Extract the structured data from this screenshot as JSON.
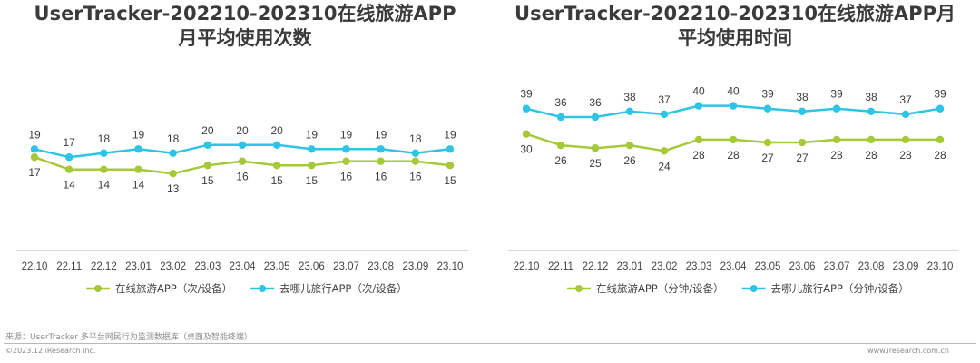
{
  "chart_data": [
    {
      "type": "line",
      "title": "UserTracker-202210-202310在线旅游APP月平均使用次数",
      "title_lines": [
        "UserTracker-202210-202310在线旅游APP",
        "月平均使用次数"
      ],
      "categories": [
        "22.10",
        "22.11",
        "22.12",
        "23.01",
        "23.02",
        "23.03",
        "23.04",
        "23.05",
        "23.06",
        "23.07",
        "23.08",
        "23.09",
        "23.10"
      ],
      "series": [
        {
          "name": "在线旅游APP（次/设备）",
          "color": "#a6c93a",
          "values": [
            17,
            14,
            14,
            14,
            13,
            15,
            16,
            15,
            15,
            16,
            16,
            16,
            15
          ]
        },
        {
          "name": "去哪儿旅行APP（次/设备）",
          "color": "#2ec4e6",
          "values": [
            19,
            17,
            18,
            19,
            18,
            20,
            20,
            20,
            19,
            19,
            19,
            18,
            19
          ]
        }
      ],
      "ylim": [
        -5,
        40
      ],
      "grid": false,
      "legend_position": "bottom"
    },
    {
      "type": "line",
      "title": "UserTracker-202210-202310在线旅游APP月平均使用时间",
      "title_lines": [
        "UserTracker-202210-202310在线旅游APP月",
        "平均使用时间"
      ],
      "categories": [
        "22.10",
        "22.11",
        "22.12",
        "23.01",
        "23.02",
        "23.03",
        "23.04",
        "23.05",
        "23.06",
        "23.07",
        "23.08",
        "23.09",
        "23.10"
      ],
      "series": [
        {
          "name": "在线旅游APP（分钟/设备）",
          "color": "#a6c93a",
          "values": [
            30,
            26,
            25,
            26,
            24,
            28,
            28,
            27,
            27,
            28,
            28,
            28,
            28
          ]
        },
        {
          "name": "去哪儿旅行APP（分钟/设备）",
          "color": "#2ec4e6",
          "values": [
            39,
            36,
            36,
            38,
            37,
            40,
            40,
            39,
            38,
            39,
            38,
            37,
            39
          ]
        }
      ],
      "ylim": [
        -10,
        55
      ],
      "grid": false,
      "legend_position": "bottom"
    }
  ],
  "footer": {
    "source": "来源：UserTracker 多平台网民行为监测数据库（桌面及智能终端）",
    "copyright": "©2023.12 iResearch Inc.",
    "website": "www.iresearch.com.cn"
  }
}
